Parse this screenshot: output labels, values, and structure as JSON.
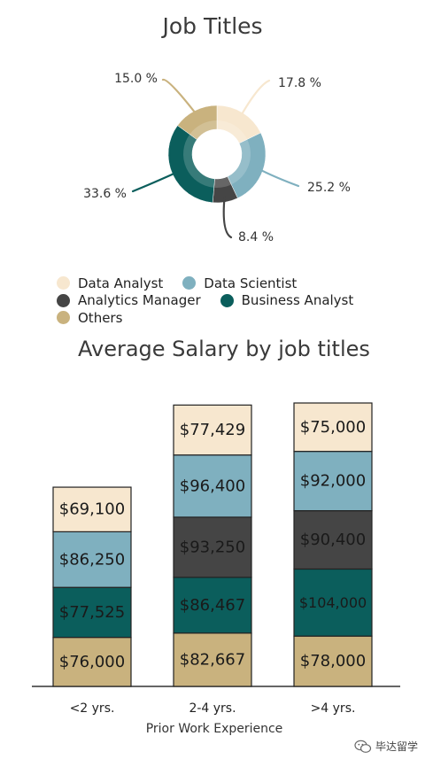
{
  "chart_data": [
    {
      "type": "pie",
      "title": "Job Titles",
      "slices": [
        {
          "name": "Data Analyst",
          "value": 17.8,
          "label": "17.8 %",
          "color": "#f7e7cf"
        },
        {
          "name": "Data Scientist",
          "value": 25.2,
          "label": "25.2 %",
          "color": "#7fb0bf"
        },
        {
          "name": "Analytics Manager",
          "value": 8.4,
          "label": "8.4 %",
          "color": "#454545"
        },
        {
          "name": "Business Analyst",
          "value": 33.6,
          "label": "33.6 %",
          "color": "#0b5e5c"
        },
        {
          "name": "Others",
          "value": 15.0,
          "label": "15.0 %",
          "color": "#c9b27e"
        }
      ],
      "legend_position": "bottom"
    },
    {
      "type": "bar",
      "stacked": true,
      "title": "Average Salary by job titles",
      "xlabel": "Prior Work Experience",
      "ylabel": "",
      "categories": [
        "<2 yrs.",
        "2-4 yrs.",
        ">4 yrs."
      ],
      "series": [
        {
          "name": "Others",
          "color": "#c9b27e",
          "values": [
            76000,
            82667,
            78000
          ],
          "labels": [
            "$76,000",
            "$82,667",
            "$78,000"
          ]
        },
        {
          "name": "Business Analyst",
          "color": "#0b5e5c",
          "values": [
            77525,
            86467,
            104000
          ],
          "labels": [
            "$77,525",
            "$86,467",
            "$104,000"
          ]
        },
        {
          "name": "Analytics Manager",
          "color": "#454545",
          "values": [
            null,
            93250,
            90400
          ],
          "labels": [
            "",
            "$93,250",
            "$90,400"
          ]
        },
        {
          "name": "Data Scientist",
          "color": "#7fb0bf",
          "values": [
            86250,
            96400,
            92000
          ],
          "labels": [
            "$86,250",
            "$96,400",
            "$92,000"
          ]
        },
        {
          "name": "Data Analyst",
          "color": "#f7e7cf",
          "values": [
            69100,
            77429,
            75000
          ],
          "labels": [
            "$69,100",
            "$77,429",
            "$75,000"
          ]
        }
      ],
      "ylim": [
        0,
        460000
      ],
      "grid": false
    }
  ],
  "legend": {
    "rows": [
      [
        {
          "label": "Data Analyst",
          "color": "#f7e7cf"
        },
        {
          "label": "Data Scientist",
          "color": "#7fb0bf"
        }
      ],
      [
        {
          "label": "Analytics Manager",
          "color": "#454545"
        },
        {
          "label": "Business Analyst",
          "color": "#0b5e5c"
        }
      ],
      [
        {
          "label": "Others",
          "color": "#c9b27e"
        }
      ]
    ]
  },
  "watermark": {
    "text": "毕达留学",
    "icon": "wechat-icon"
  }
}
